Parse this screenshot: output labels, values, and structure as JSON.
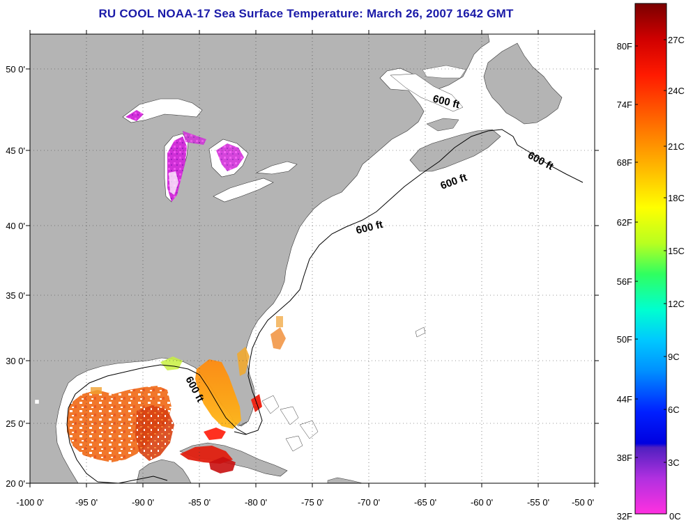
{
  "title": "RU COOL  NOAA-17  Sea Surface Temperature:  March 26, 2007 1642 GMT",
  "map": {
    "lon_ticks": [
      "-100 0'",
      "-95 0'",
      "-90 0'",
      "-85 0'",
      "-80 0'",
      "-75 0'",
      "-70 0'",
      "-65 0'",
      "-60 0'",
      "-55 0'",
      "-50 0'"
    ],
    "lat_ticks": [
      "50 0'",
      "45 0'",
      "40 0'",
      "35 0'",
      "30 0'",
      "25 0'",
      "20 0'"
    ],
    "contour_label": "600 ft",
    "land_color": "#b4b4b4",
    "ocean_color": "#ffffff"
  },
  "colorbar": {
    "celsius": [
      "27C",
      "24C",
      "21C",
      "18C",
      "15C",
      "12C",
      "9C",
      "6C",
      "3C",
      "0C"
    ],
    "fahrenheit": [
      "80F",
      "74F",
      "68F",
      "62F",
      "56F",
      "50F",
      "44F",
      "38F",
      "32F"
    ]
  }
}
